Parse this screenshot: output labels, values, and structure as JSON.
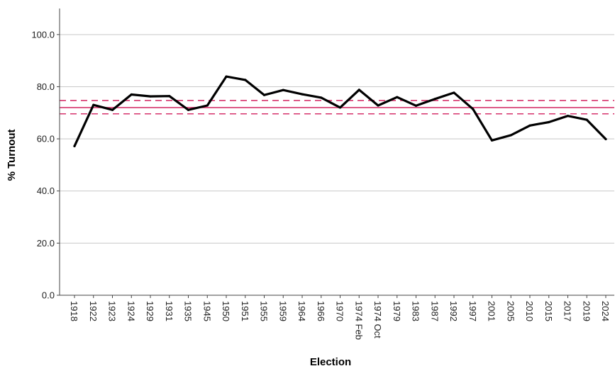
{
  "chart_data": {
    "type": "line",
    "title": "",
    "xlabel": "Election",
    "ylabel": "% Turnout",
    "ylim": [
      0,
      110
    ],
    "yticks": [
      "0.0",
      "20.0",
      "40.0",
      "60.0",
      "80.0",
      "100.0"
    ],
    "grid": true,
    "categories": [
      "1918",
      "1922",
      "1923",
      "1924",
      "1929",
      "1931",
      "1935",
      "1945",
      "1950",
      "1951",
      "1955",
      "1959",
      "1964",
      "1966",
      "1970",
      "1974 Feb",
      "1974 Oct",
      "1979",
      "1983",
      "1987",
      "1992",
      "1997",
      "2001",
      "2005",
      "2010",
      "2015",
      "2017",
      "2019",
      "2024"
    ],
    "series": [
      {
        "values": [
          57.2,
          73.0,
          71.1,
          77.0,
          76.3,
          76.4,
          71.1,
          72.8,
          83.9,
          82.6,
          76.8,
          78.7,
          77.1,
          75.8,
          72.0,
          78.8,
          72.8,
          76.0,
          72.7,
          75.3,
          77.7,
          71.4,
          59.4,
          61.4,
          65.1,
          66.4,
          68.8,
          67.3,
          59.9
        ],
        "color": "#000000"
      }
    ],
    "reference_lines": [
      {
        "style": "solid",
        "value": 72.0,
        "color": "#d6336c"
      },
      {
        "style": "dashed",
        "value": 74.7,
        "color": "#d6336c"
      },
      {
        "style": "dashed",
        "value": 69.6,
        "color": "#d6336c"
      }
    ]
  }
}
